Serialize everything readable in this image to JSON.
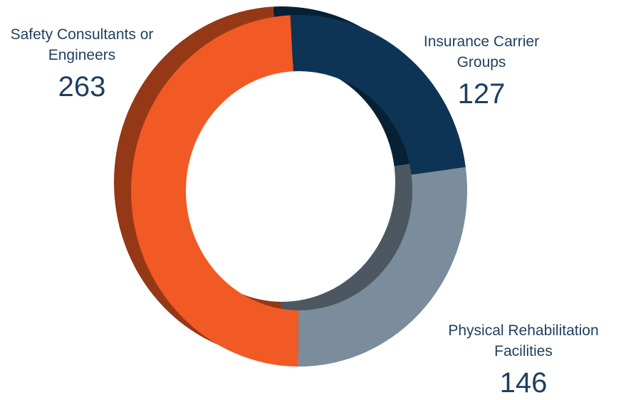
{
  "chart_data": {
    "type": "donut",
    "categories": [
      "Insurance Carrier Groups",
      "Physical Rehabilitation Facilities",
      "Safety Consultants or Engineers"
    ],
    "values": [
      127,
      146,
      263
    ],
    "colors": [
      "#0d3454",
      "#7b8c9c",
      "#f15a24"
    ]
  }
}
